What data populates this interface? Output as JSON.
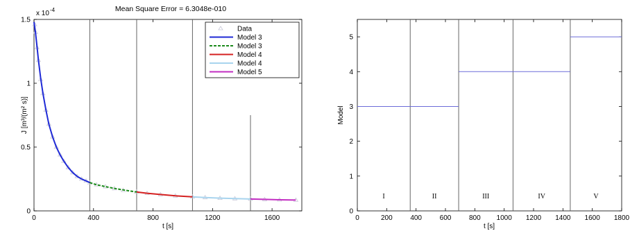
{
  "chart_data": [
    {
      "type": "line",
      "title": "Mean Square Error = 6.3048e-010",
      "xlabel": "t [s]",
      "ylabel": "J [m³/(m² s)]",
      "y_multiplier_label": "x 10",
      "y_multiplier_exponent": "-4",
      "xlim": [
        0,
        1800
      ],
      "ylim": [
        0,
        1.5
      ],
      "x_ticks": [
        0,
        400,
        800,
        1200,
        1600
      ],
      "y_ticks": [
        0,
        0.5,
        1,
        1.5
      ],
      "y_tick_labels": [
        "0",
        "0.5",
        "1",
        "1.5"
      ],
      "vertical_lines": [
        {
          "x": 375,
          "y_top": 1.5
        },
        {
          "x": 690,
          "y_top": 1.5
        },
        {
          "x": 1065,
          "y_top": 1.5
        },
        {
          "x": 1455,
          "y_top": 0.75
        }
      ],
      "legend_position": "top-right",
      "data_series": {
        "name": "Data",
        "x": [
          5,
          10,
          20,
          30,
          45,
          60,
          80,
          100,
          125,
          150,
          175,
          200,
          230,
          260,
          290,
          320,
          350,
          375,
          420,
          480,
          540,
          600,
          690,
          760,
          850,
          950,
          1065,
          1150,
          1250,
          1350,
          1455,
          1550,
          1650,
          1760
        ],
        "y": [
          1.46,
          1.4,
          1.28,
          1.18,
          1.03,
          0.92,
          0.79,
          0.68,
          0.58,
          0.5,
          0.44,
          0.39,
          0.34,
          0.3,
          0.27,
          0.25,
          0.235,
          0.22,
          0.205,
          0.19,
          0.175,
          0.162,
          0.148,
          0.138,
          0.128,
          0.118,
          0.11,
          0.105,
          0.1,
          0.096,
          0.093,
          0.09,
          0.087,
          0.085
        ]
      },
      "series": [
        {
          "name": "Model 3",
          "color": "#1f2ad6",
          "dash": "solid",
          "x": [
            0,
            10,
            20,
            30,
            45,
            60,
            80,
            100,
            125,
            150,
            175,
            200,
            230,
            260,
            290,
            320,
            350,
            375
          ],
          "y": [
            1.48,
            1.4,
            1.29,
            1.18,
            1.04,
            0.92,
            0.79,
            0.68,
            0.58,
            0.5,
            0.44,
            0.39,
            0.34,
            0.3,
            0.27,
            0.25,
            0.235,
            0.222
          ]
        },
        {
          "name": "Model 3",
          "color": "#1a8a1a",
          "dash": "dashed",
          "x": [
            375,
            420,
            480,
            540,
            600,
            650,
            690
          ],
          "y": [
            0.222,
            0.205,
            0.19,
            0.176,
            0.164,
            0.155,
            0.148
          ]
        },
        {
          "name": "Model 4",
          "color": "#d42020",
          "dash": "solid",
          "x": [
            690,
            760,
            850,
            950,
            1065
          ],
          "y": [
            0.148,
            0.138,
            0.128,
            0.118,
            0.11
          ]
        },
        {
          "name": "Model 4",
          "color": "#a8d4ee",
          "dash": "solid",
          "x": [
            1065,
            1150,
            1250,
            1350,
            1455
          ],
          "y": [
            0.11,
            0.105,
            0.1,
            0.096,
            0.093
          ]
        },
        {
          "name": "Model 5",
          "color": "#c22ec2",
          "dash": "solid",
          "x": [
            1455,
            1550,
            1650,
            1760
          ],
          "y": [
            0.093,
            0.09,
            0.087,
            0.085
          ]
        }
      ]
    },
    {
      "type": "line",
      "title": "",
      "xlabel": "t [s]",
      "ylabel": "Model",
      "xlim": [
        0,
        1800
      ],
      "ylim": [
        0,
        5.5
      ],
      "x_ticks": [
        0,
        200,
        400,
        600,
        800,
        1000,
        1200,
        1400,
        1600,
        1800
      ],
      "y_ticks": [
        0,
        1,
        2,
        3,
        4,
        5
      ],
      "vertical_lines": [
        360,
        690,
        1060,
        1450
      ],
      "segments": [
        {
          "x": [
            0,
            690
          ],
          "y": 3
        },
        {
          "x": [
            690,
            1450
          ],
          "y": 4
        },
        {
          "x": [
            1450,
            1800
          ],
          "y": 5
        }
      ],
      "regions": [
        {
          "label": "I",
          "x": 180
        },
        {
          "label": "II",
          "x": 525
        },
        {
          "label": "III",
          "x": 875
        },
        {
          "label": "IV",
          "x": 1255
        },
        {
          "label": "V",
          "x": 1625
        }
      ],
      "line_color": "#6b6bd8"
    }
  ]
}
